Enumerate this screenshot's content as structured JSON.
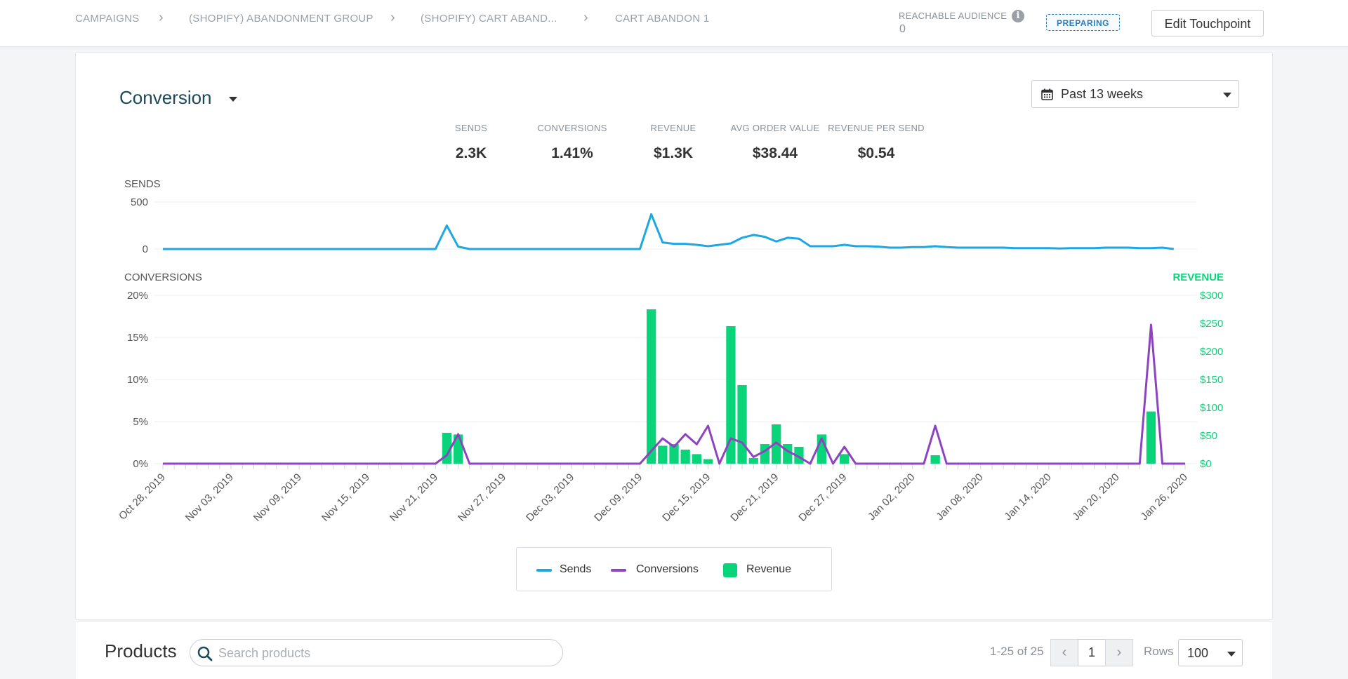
{
  "breadcrumb": {
    "items": [
      "CAMPAIGNS",
      "(SHOPIFY) ABANDONMENT GROUP",
      "(SHOPIFY) CART ABAND...",
      "CART ABANDON 1"
    ]
  },
  "header": {
    "reachable_label": "REACHABLE AUDIENCE",
    "reachable_value": "0",
    "status_badge": "PREPARING",
    "edit_button": "Edit Touchpoint"
  },
  "conversion_panel": {
    "title": "Conversion",
    "date_range": "Past 13 weeks",
    "metrics": [
      {
        "label": "SENDS",
        "value": "2.3K"
      },
      {
        "label": "CONVERSIONS",
        "value": "1.41%"
      },
      {
        "label": "REVENUE",
        "value": "$1.3K"
      },
      {
        "label": "AVG ORDER VALUE",
        "value": "$38.44"
      },
      {
        "label": "REVENUE PER SEND",
        "value": "$0.54"
      }
    ]
  },
  "colors": {
    "sends": "#1ea7e1",
    "conversions": "#8e44c1",
    "revenue": "#0ad47a"
  },
  "chart_data": [
    {
      "type": "line",
      "title": "SENDS",
      "ylim": [
        0,
        500
      ],
      "yticks": [
        "500",
        "0"
      ],
      "series": [
        {
          "name": "Sends",
          "values": [
            0,
            0,
            0,
            0,
            0,
            0,
            0,
            0,
            0,
            0,
            0,
            0,
            0,
            0,
            0,
            0,
            0,
            0,
            0,
            0,
            0,
            0,
            0,
            0,
            0,
            250,
            25,
            0,
            0,
            0,
            0,
            0,
            0,
            0,
            0,
            0,
            0,
            0,
            0,
            0,
            0,
            0,
            0,
            370,
            70,
            55,
            55,
            45,
            30,
            45,
            60,
            120,
            150,
            130,
            80,
            120,
            110,
            30,
            30,
            30,
            45,
            30,
            30,
            25,
            15,
            15,
            20,
            20,
            30,
            20,
            15,
            15,
            15,
            15,
            15,
            10,
            10,
            10,
            10,
            5,
            10,
            10,
            10,
            15,
            15,
            15,
            10,
            10,
            15,
            0
          ]
        }
      ]
    },
    {
      "type": "bar+line",
      "title": "CONVERSIONS",
      "ylabel_right": "REVENUE",
      "ylim": [
        0,
        20
      ],
      "ylim_right": [
        0,
        300
      ],
      "yticks_left": [
        "20%",
        "15%",
        "10%",
        "5%",
        "0%"
      ],
      "yticks_right": [
        "$300",
        "$250",
        "$200",
        "$150",
        "$100",
        "$50",
        "$0"
      ],
      "x_start": "2019-10-28",
      "x_end": "2020-01-26",
      "x_tick_labels": [
        "Oct 28, 2019",
        "Nov 03, 2019",
        "Nov 09, 2019",
        "Nov 15, 2019",
        "Nov 21, 2019",
        "Nov 27, 2019",
        "Dec 03, 2019",
        "Dec 09, 2019",
        "Dec 15, 2019",
        "Dec 21, 2019",
        "Dec 27, 2019",
        "Jan 02, 2020",
        "Jan 08, 2020",
        "Jan 14, 2020",
        "Jan 20, 2020",
        "Jan 26, 2020"
      ],
      "series": [
        {
          "name": "Conversions",
          "values": [
            0,
            0,
            0,
            0,
            0,
            0,
            0,
            0,
            0,
            0,
            0,
            0,
            0,
            0,
            0,
            0,
            0,
            0,
            0,
            0,
            0,
            0,
            0,
            0,
            0,
            1,
            3.5,
            0,
            0,
            0,
            0,
            0,
            0,
            0,
            0,
            0,
            0,
            0,
            0,
            0,
            0,
            0,
            0,
            1.5,
            3,
            2,
            3.5,
            2.3,
            4.5,
            0,
            3,
            2.5,
            0.8,
            1.5,
            2.5,
            1.5,
            0.8,
            0,
            3,
            0,
            2,
            0,
            0,
            0,
            0,
            0,
            0,
            0,
            4.5,
            0,
            0,
            0,
            0,
            0,
            0,
            0,
            0,
            0,
            0,
            0,
            0,
            0,
            0,
            0,
            0,
            0,
            0,
            16.5,
            0,
            0,
            0
          ]
        },
        {
          "name": "Revenue",
          "values": [
            0,
            0,
            0,
            0,
            0,
            0,
            0,
            0,
            0,
            0,
            0,
            0,
            0,
            0,
            0,
            0,
            0,
            0,
            0,
            0,
            0,
            0,
            0,
            0,
            0,
            55,
            52,
            0,
            0,
            0,
            0,
            0,
            0,
            0,
            0,
            0,
            0,
            0,
            0,
            0,
            0,
            0,
            0,
            275,
            32,
            35,
            25,
            17,
            8,
            0,
            245,
            140,
            10,
            35,
            70,
            35,
            30,
            0,
            52,
            0,
            17,
            0,
            0,
            0,
            0,
            0,
            0,
            0,
            15,
            0,
            0,
            0,
            0,
            0,
            0,
            0,
            0,
            0,
            0,
            0,
            0,
            0,
            0,
            0,
            0,
            0,
            0,
            93,
            0,
            0,
            0
          ]
        }
      ]
    }
  ],
  "legend": {
    "sends": "Sends",
    "conversions": "Conversions",
    "revenue": "Revenue"
  },
  "products": {
    "title": "Products",
    "search_placeholder": "Search products",
    "pagination_text": "1-25 of 25",
    "current_page": "1",
    "rows_label": "Rows",
    "rows_value": "100"
  }
}
